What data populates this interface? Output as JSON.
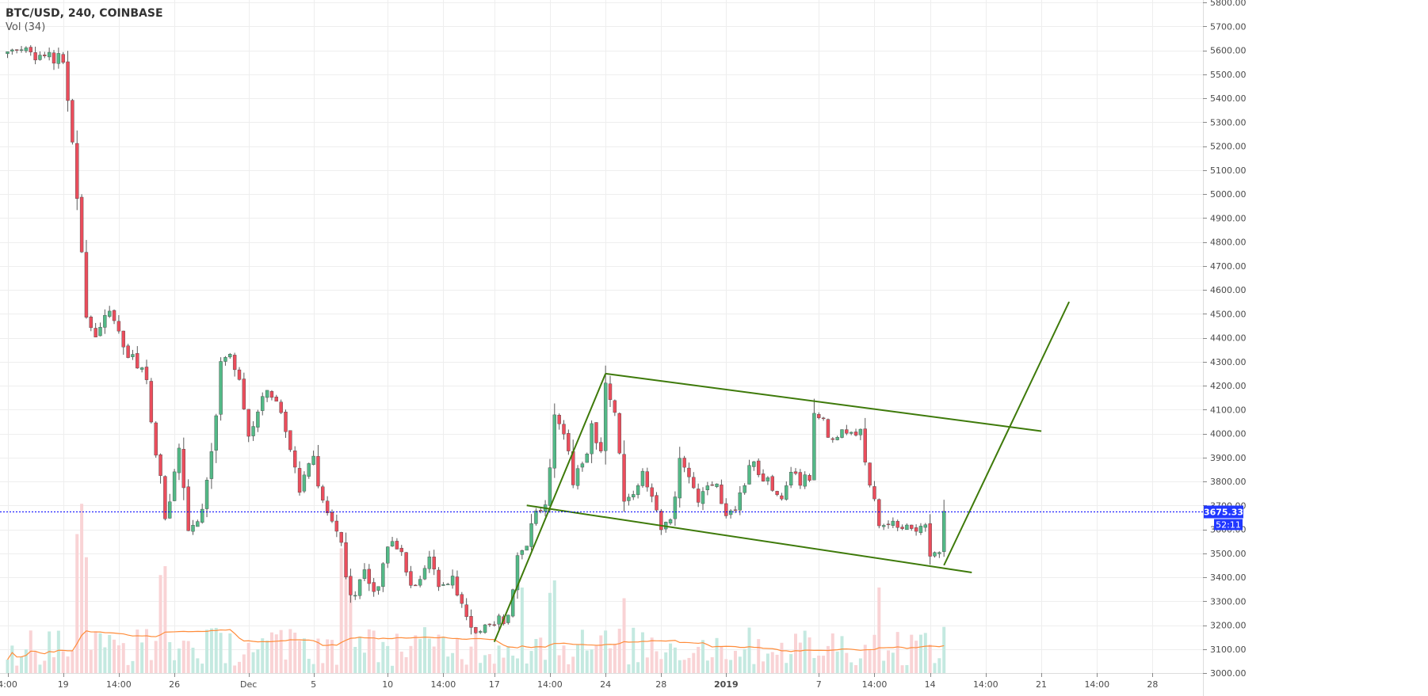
{
  "header": {
    "symbol": "BTC/USD, 240, COINBASE",
    "volume_indicator": "Vol (34)"
  },
  "colors": {
    "up_candle": "#53b987",
    "down_candle": "#eb4d5c",
    "up_volume": "#c4e9e0",
    "down_volume": "#f9d3d5",
    "volume_ma": "#ff8c3a",
    "trendline": "#3e7a0a",
    "price_line": "#0000ff",
    "price_tag": "#2138ff",
    "grid": "#eeeeee",
    "axis_text": "#4a4a4a"
  },
  "price_axis": {
    "min": 3000,
    "max": 5800,
    "step": 100,
    "tick_labels": [
      "5800.00",
      "5700.00",
      "5600.00",
      "5500.00",
      "5400.00",
      "5300.00",
      "5200.00",
      "5100.00",
      "5000.00",
      "4900.00",
      "4800.00",
      "4700.00",
      "4600.00",
      "4500.00",
      "4400.00",
      "4300.00",
      "4200.00",
      "4100.00",
      "4000.00",
      "3900.00",
      "3800.00",
      "3700.00",
      "3600.00",
      "3500.00",
      "3400.00",
      "3300.00",
      "3200.00",
      "3100.00",
      "3000.00"
    ],
    "current_price": "3675.33",
    "countdown": "52:11"
  },
  "time_axis": {
    "labels": [
      {
        "text": "4:00",
        "bar": 0,
        "bold": false
      },
      {
        "text": "19",
        "bar": 12,
        "bold": false
      },
      {
        "text": "14:00",
        "bar": 24,
        "bold": false
      },
      {
        "text": "26",
        "bar": 36,
        "bold": false
      },
      {
        "text": "Dec",
        "bar": 52,
        "bold": false
      },
      {
        "text": "5",
        "bar": 66,
        "bold": false
      },
      {
        "text": "10",
        "bar": 82,
        "bold": false
      },
      {
        "text": "14:00",
        "bar": 94,
        "bold": false
      },
      {
        "text": "17",
        "bar": 105,
        "bold": false
      },
      {
        "text": "14:00",
        "bar": 117,
        "bold": false
      },
      {
        "text": "24",
        "bar": 129,
        "bold": false
      },
      {
        "text": "28",
        "bar": 141,
        "bold": false
      },
      {
        "text": "2019",
        "bar": 155,
        "bold": true
      },
      {
        "text": "7",
        "bar": 175,
        "bold": false
      },
      {
        "text": "14:00",
        "bar": 187,
        "bold": false
      },
      {
        "text": "14",
        "bar": 199,
        "bold": false
      },
      {
        "text": "14:00",
        "bar": 211,
        "bold": false
      },
      {
        "text": "21",
        "bar": 223,
        "bold": false
      },
      {
        "text": "14:00",
        "bar": 235,
        "bold": false
      },
      {
        "text": "28",
        "bar": 247,
        "bold": false
      }
    ]
  },
  "chart_data": {
    "type": "candlestick",
    "interval": "240",
    "exchange": "COINBASE",
    "volume_ma_period": 34,
    "ylim": [
      3000,
      5800
    ],
    "grid": true,
    "key_points": [
      {
        "bar": 0,
        "price": 5600
      },
      {
        "bar": 12,
        "price": 5560
      },
      {
        "bar": 14,
        "price": 5200
      },
      {
        "bar": 17,
        "price": 4500
      },
      {
        "bar": 19,
        "price": 4400
      },
      {
        "bar": 22,
        "price": 4520
      },
      {
        "bar": 25,
        "price": 4350
      },
      {
        "bar": 28,
        "price": 4300
      },
      {
        "bar": 30,
        "price": 4200
      },
      {
        "bar": 33,
        "price": 3800
      },
      {
        "bar": 34,
        "price": 3620
      },
      {
        "bar": 37,
        "price": 3950
      },
      {
        "bar": 39,
        "price": 3620
      },
      {
        "bar": 42,
        "price": 3660
      },
      {
        "bar": 44,
        "price": 3900
      },
      {
        "bar": 46,
        "price": 4300
      },
      {
        "bar": 48,
        "price": 4350
      },
      {
        "bar": 50,
        "price": 4200
      },
      {
        "bar": 52,
        "price": 3970
      },
      {
        "bar": 55,
        "price": 4180
      },
      {
        "bar": 58,
        "price": 4120
      },
      {
        "bar": 61,
        "price": 3950
      },
      {
        "bar": 63,
        "price": 3760
      },
      {
        "bar": 66,
        "price": 3900
      },
      {
        "bar": 68,
        "price": 3700
      },
      {
        "bar": 72,
        "price": 3520
      },
      {
        "bar": 74,
        "price": 3300
      },
      {
        "bar": 77,
        "price": 3420
      },
      {
        "bar": 79,
        "price": 3330
      },
      {
        "bar": 83,
        "price": 3560
      },
      {
        "bar": 85,
        "price": 3480
      },
      {
        "bar": 88,
        "price": 3340
      },
      {
        "bar": 91,
        "price": 3460
      },
      {
        "bar": 93,
        "price": 3360
      },
      {
        "bar": 96,
        "price": 3380
      },
      {
        "bar": 99,
        "price": 3250
      },
      {
        "bar": 102,
        "price": 3150
      },
      {
        "bar": 104,
        "price": 3200
      },
      {
        "bar": 106,
        "price": 3220
      },
      {
        "bar": 108,
        "price": 3230
      },
      {
        "bar": 110,
        "price": 3500
      },
      {
        "bar": 112,
        "price": 3540
      },
      {
        "bar": 114,
        "price": 3700
      },
      {
        "bar": 116,
        "price": 3680
      },
      {
        "bar": 118,
        "price": 4080
      },
      {
        "bar": 120,
        "price": 4000
      },
      {
        "bar": 122,
        "price": 3800
      },
      {
        "bar": 124,
        "price": 3860
      },
      {
        "bar": 126,
        "price": 4020
      },
      {
        "bar": 128,
        "price": 3950
      },
      {
        "bar": 129,
        "price": 4200
      },
      {
        "bar": 131,
        "price": 4100
      },
      {
        "bar": 133,
        "price": 3700
      },
      {
        "bar": 135,
        "price": 3720
      },
      {
        "bar": 137,
        "price": 3830
      },
      {
        "bar": 139,
        "price": 3720
      },
      {
        "bar": 141,
        "price": 3600
      },
      {
        "bar": 143,
        "price": 3620
      },
      {
        "bar": 145,
        "price": 3880
      },
      {
        "bar": 147,
        "price": 3820
      },
      {
        "bar": 149,
        "price": 3700
      },
      {
        "bar": 151,
        "price": 3800
      },
      {
        "bar": 153,
        "price": 3780
      },
      {
        "bar": 155,
        "price": 3660
      },
      {
        "bar": 157,
        "price": 3700
      },
      {
        "bar": 159,
        "price": 3800
      },
      {
        "bar": 161,
        "price": 3880
      },
      {
        "bar": 163,
        "price": 3820
      },
      {
        "bar": 165,
        "price": 3760
      },
      {
        "bar": 167,
        "price": 3750
      },
      {
        "bar": 169,
        "price": 3820
      },
      {
        "bar": 171,
        "price": 3800
      },
      {
        "bar": 173,
        "price": 3830
      },
      {
        "bar": 174,
        "price": 4080
      },
      {
        "bar": 176,
        "price": 4040
      },
      {
        "bar": 178,
        "price": 3980
      },
      {
        "bar": 180,
        "price": 4030
      },
      {
        "bar": 182,
        "price": 4010
      },
      {
        "bar": 184,
        "price": 4020
      },
      {
        "bar": 186,
        "price": 3770
      },
      {
        "bar": 188,
        "price": 3630
      },
      {
        "bar": 190,
        "price": 3610
      },
      {
        "bar": 192,
        "price": 3630
      },
      {
        "bar": 194,
        "price": 3620
      },
      {
        "bar": 196,
        "price": 3610
      },
      {
        "bar": 198,
        "price": 3600
      },
      {
        "bar": 199,
        "price": 3480
      },
      {
        "bar": 200,
        "price": 3500
      },
      {
        "bar": 201,
        "price": 3520
      },
      {
        "bar": 202,
        "price": 3675
      }
    ],
    "trendlines": [
      {
        "from": {
          "bar": 105,
          "price": 3130
        },
        "to": {
          "bar": 129,
          "price": 4250
        }
      },
      {
        "from": {
          "bar": 129,
          "price": 4250
        },
        "to": {
          "bar": 223,
          "price": 4010
        }
      },
      {
        "from": {
          "bar": 112,
          "price": 3700
        },
        "to": {
          "bar": 208,
          "price": 3420
        }
      },
      {
        "from": {
          "bar": 202,
          "price": 3450
        },
        "to": {
          "bar": 229,
          "price": 4550
        }
      }
    ],
    "volume": {
      "scale_max": 100,
      "ma_level": 12,
      "spikes": [
        {
          "bar": 16,
          "level": 95
        },
        {
          "bar": 15,
          "level": 78
        },
        {
          "bar": 17,
          "level": 65
        },
        {
          "bar": 33,
          "level": 55
        },
        {
          "bar": 34,
          "level": 60
        },
        {
          "bar": 72,
          "level": 70
        },
        {
          "bar": 73,
          "level": 62
        },
        {
          "bar": 74,
          "level": 50
        },
        {
          "bar": 111,
          "level": 48
        },
        {
          "bar": 117,
          "level": 45
        },
        {
          "bar": 118,
          "level": 52
        },
        {
          "bar": 133,
          "level": 42
        },
        {
          "bar": 188,
          "level": 48
        }
      ]
    }
  }
}
